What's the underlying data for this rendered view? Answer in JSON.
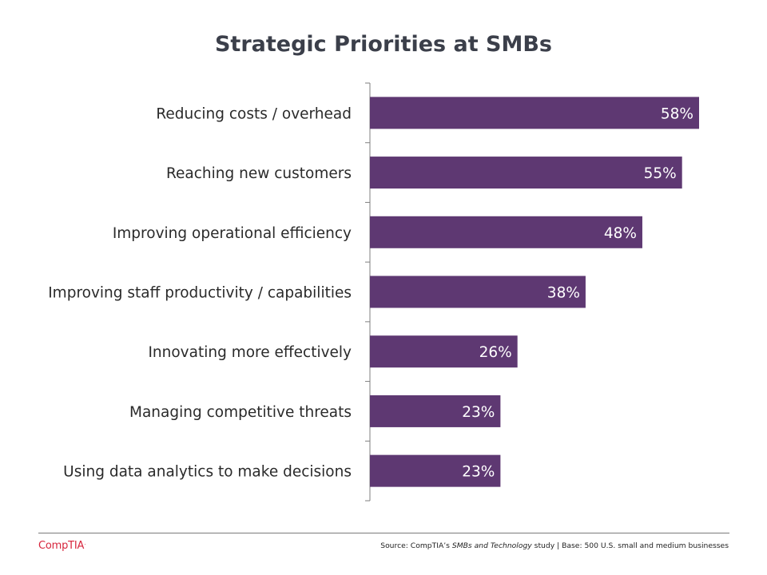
{
  "chart_data": {
    "type": "bar",
    "orientation": "horizontal",
    "title": "Strategic Priorities at SMBs",
    "categories": [
      "Reducing costs / overhead",
      "Reaching new customers",
      "Improving operational efficiency",
      "Improving staff productivity / capabilities",
      "Innovating more effectively",
      "Managing competitive threats",
      "Using data analytics to make decisions"
    ],
    "values": [
      58,
      55,
      48,
      38,
      26,
      23,
      23
    ],
    "data_labels": [
      "58%",
      "55%",
      "48%",
      "38%",
      "26%",
      "23%",
      "23%"
    ],
    "value_unit": "%",
    "xlim": [
      0,
      58
    ],
    "grid": false,
    "bar_color": "#5e3872",
    "label_color": "#ffffff"
  },
  "footer": {
    "logo_text": "CompTIA",
    "logo_mark": ".",
    "logo_color": "#d7263d",
    "source_prefix": "Source: CompTIA’s ",
    "source_study": "SMBs and Technology",
    "source_suffix": " study | Base: 500 U.S. small and medium businesses"
  }
}
